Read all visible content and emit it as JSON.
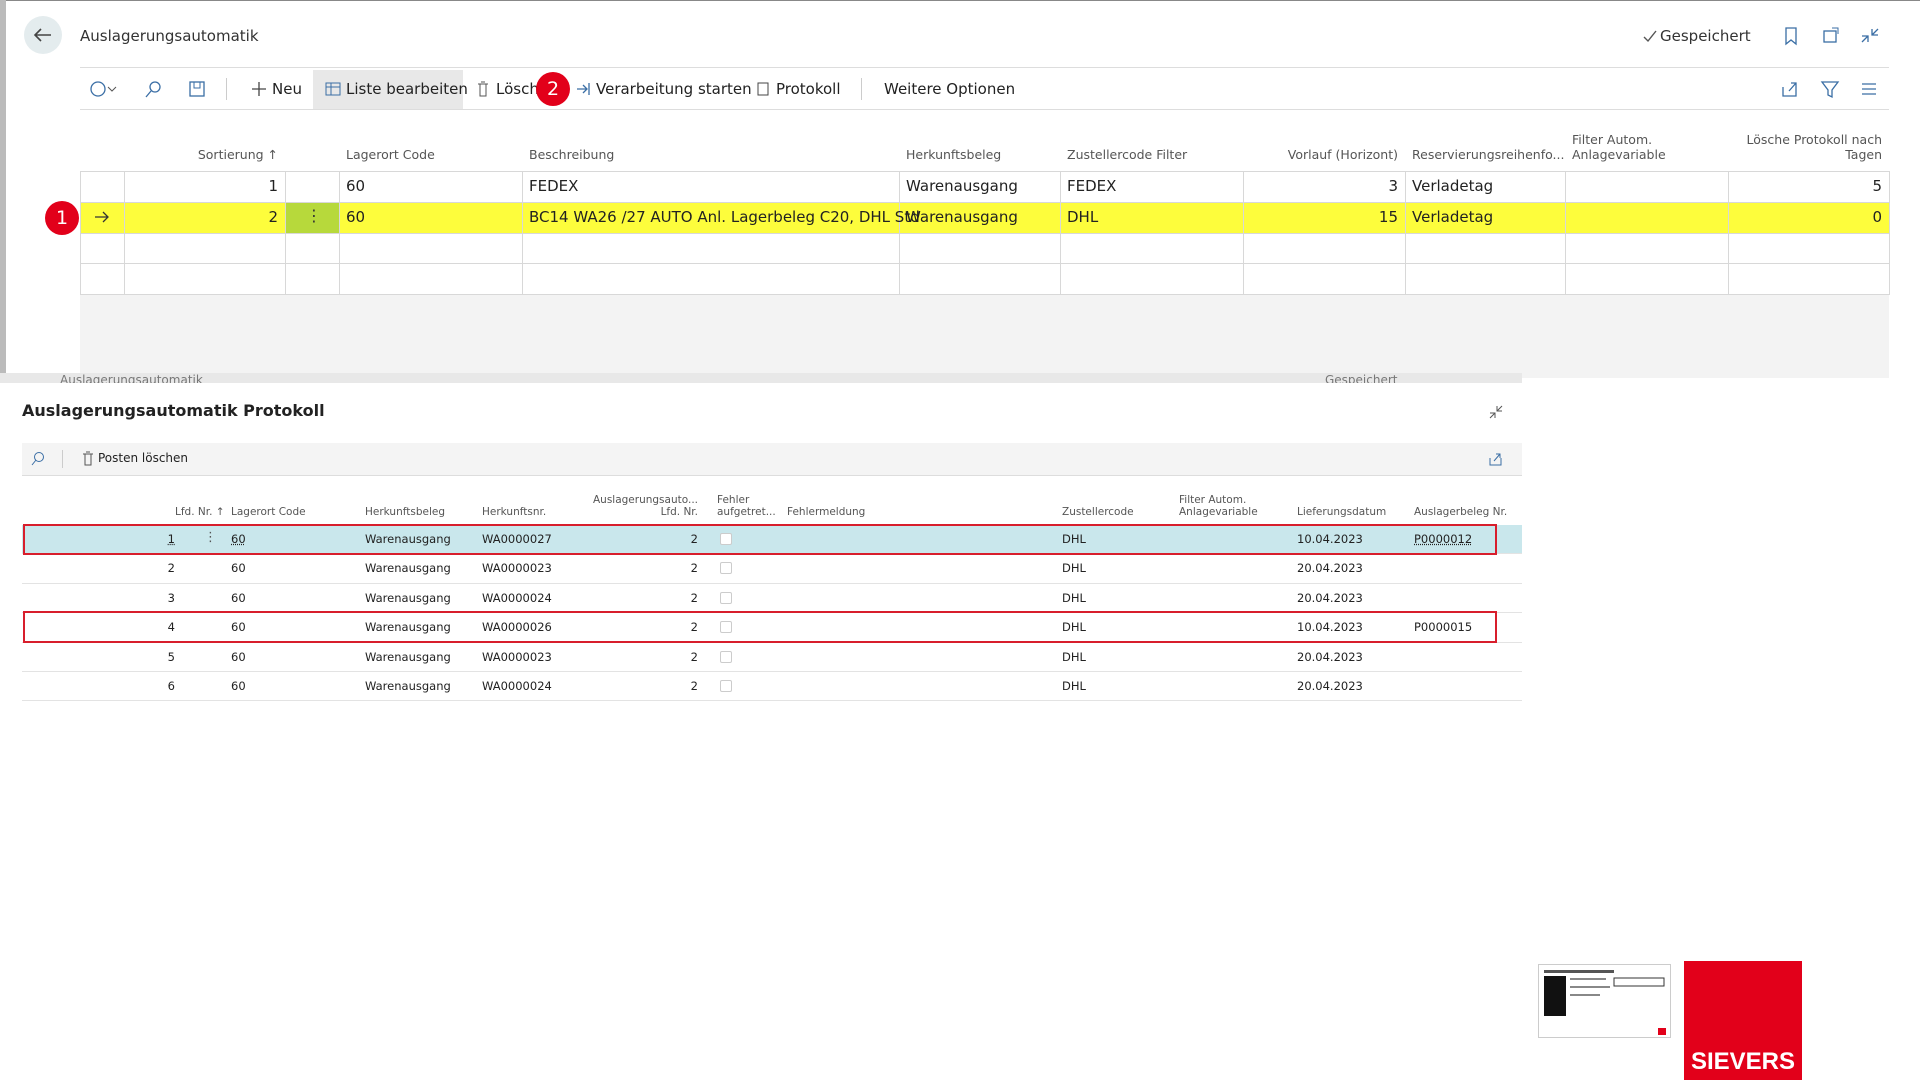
{
  "top": {
    "title": "Auslagerungsautomatik",
    "status": "Gespeichert",
    "actions": [
      "Neu",
      "Liste bearbeiten",
      "Löschen",
      "Verarbeitung starten",
      "Protokoll",
      "Weitere Optionen"
    ],
    "badges": [
      1,
      2
    ],
    "table": {
      "headers": [
        "Sortierung ↑",
        "Lagerort Code",
        "Beschreibung",
        "Herkunftsbeleg",
        "Zustellercode Filter",
        "Vorlauf (Horizont)",
        "Reservierungsreihenfo...",
        "Filter Autom.\nAnlagevariable",
        "Lösche Protokoll nach\nTagen"
      ],
      "rows": [
        [
          1,
          "60",
          "FEDEX",
          "Warenausgang",
          "FEDEX",
          3,
          "Verladetag",
          null,
          5
        ],
        [
          2,
          "60",
          "BC14 WA26 /27 AUTO Anl. Lagerbeleg C20, DHL Std",
          "Warenausgang",
          "DHL",
          15,
          "Verladetag",
          null,
          0
        ]
      ]
    }
  },
  "protocol": {
    "title": "Auslagerungsautomatik Protokoll",
    "actions": [
      "Posten löschen"
    ],
    "headers": [
      "Lfd. Nr. ↑",
      "Lagerort Code",
      "Herkunftsbeleg",
      "Herkunftsnr.",
      "Auslagerungsauto...\nLfd. Nr.",
      "Fehler\naufgetret...",
      "Fehlermeldung",
      "Zustellercode",
      "Filter Autom.\nAnlagevariable",
      "Lieferungsdatum",
      "Auslagerbeleg Nr."
    ],
    "rows": [
      [
        1,
        "60",
        "Warenausgang",
        "WA0000027",
        2,
        false,
        null,
        "DHL",
        null,
        "10.04.2023",
        "P0000012"
      ],
      [
        2,
        "60",
        "Warenausgang",
        "WA0000023",
        2,
        false,
        null,
        "DHL",
        null,
        "20.04.2023",
        null
      ],
      [
        3,
        "60",
        "Warenausgang",
        "WA0000024",
        2,
        false,
        null,
        "DHL",
        null,
        "20.04.2023",
        null
      ],
      [
        4,
        "60",
        "Warenausgang",
        "WA0000026",
        2,
        false,
        null,
        "DHL",
        null,
        "10.04.2023",
        "P0000015"
      ],
      [
        5,
        "60",
        "Warenausgang",
        "WA0000023",
        2,
        false,
        null,
        "DHL",
        null,
        "20.04.2023",
        null
      ],
      [
        6,
        "60",
        "Warenausgang",
        "WA0000024",
        2,
        false,
        null,
        "DHL",
        null,
        "20.04.2023",
        null
      ]
    ]
  },
  "logo": "SIEVERS"
}
